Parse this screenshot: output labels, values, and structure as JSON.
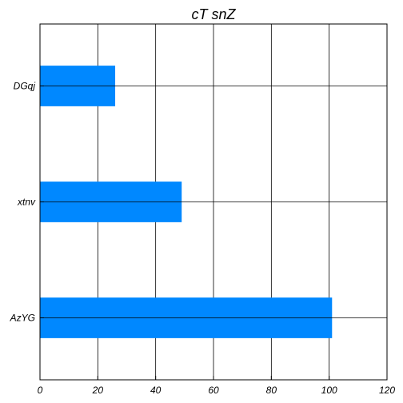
{
  "chart_data": {
    "type": "bar",
    "orientation": "horizontal",
    "title": "cT snZ",
    "xlabel": "",
    "ylabel": "",
    "categories": [
      "AzYG",
      "xtnv",
      "DGqj"
    ],
    "values": [
      101,
      49,
      26
    ],
    "xlim": [
      0,
      120
    ],
    "xticks": [
      0,
      20,
      40,
      60,
      80,
      100,
      120
    ],
    "grid": true,
    "bar_color": "#0088ff"
  }
}
